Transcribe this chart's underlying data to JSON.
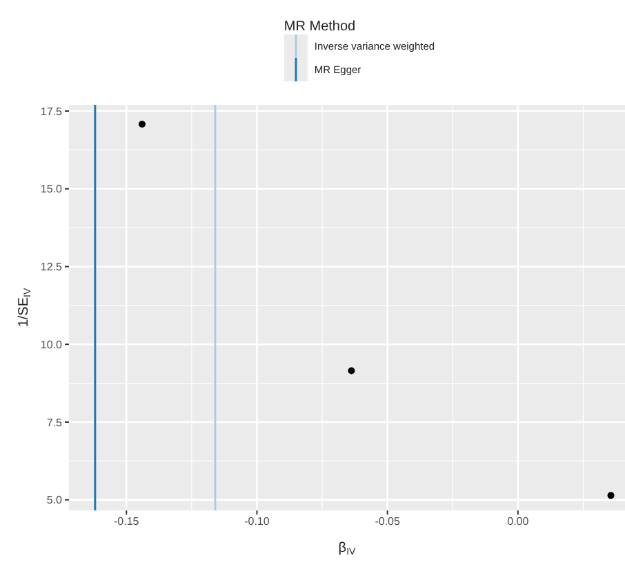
{
  "chart_data": {
    "type": "scatter",
    "xlabel": "β$_{IV}$",
    "ylabel": "1/SE$_{IV}$",
    "legend_title": "MR Method",
    "x": [
      -0.144,
      -0.0638,
      0.0356
    ],
    "series": [
      {
        "color": "#000000",
        "values": [
          17.08,
          9.15,
          5.14
        ]
      }
    ],
    "marker": "circle",
    "xlim": [
      -0.172,
      0.041
    ],
    "ylim": [
      4.66,
      17.7
    ],
    "xticks": [
      {
        "value": -0.15,
        "label": "-0.15"
      },
      {
        "value": -0.1,
        "label": "-0.10"
      },
      {
        "value": -0.05,
        "label": "-0.05"
      },
      {
        "value": 0,
        "label": "0.00"
      }
    ],
    "yticks": [
      {
        "value": 5,
        "label": "5.0"
      },
      {
        "value": 7.5,
        "label": "7.5"
      },
      {
        "value": 10,
        "label": "10.0"
      },
      {
        "value": 12.5,
        "label": "12.5"
      },
      {
        "value": 15,
        "label": "15.0"
      },
      {
        "value": 17.5,
        "label": "17.5"
      }
    ],
    "ref_lines": [
      {
        "axis": "x",
        "value": -0.116,
        "label": "Inverse variance weighted",
        "color": "#a6cee3"
      },
      {
        "axis": "x",
        "value": -0.162,
        "label": "MR Egger",
        "color": "#1f78b4"
      }
    ],
    "grid": true,
    "legend": "top"
  }
}
